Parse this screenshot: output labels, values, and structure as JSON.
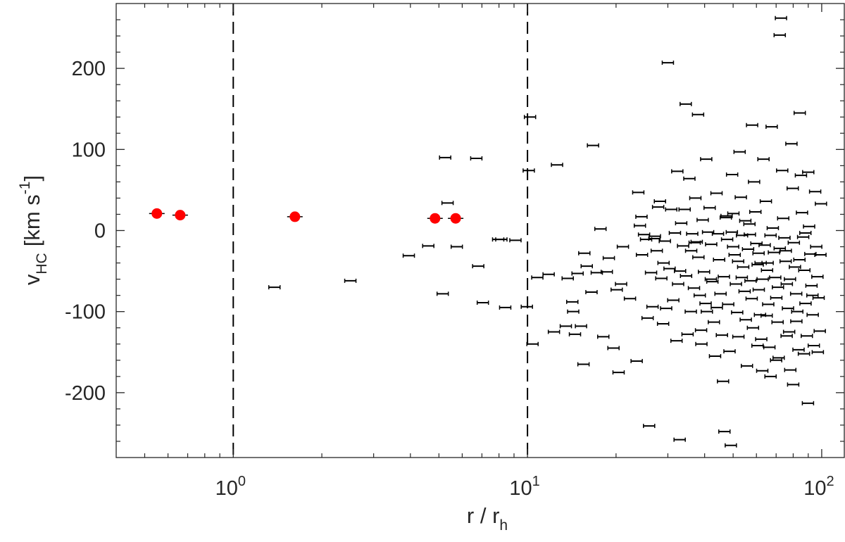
{
  "chart_data": {
    "type": "scatter",
    "title": "",
    "xlabel": "r / r",
    "xlabel_sub": "h",
    "ylabel": "v",
    "ylabel_sub": "HC",
    "ylabel_unit": "[km s",
    "ylabel_unit_sup": "-1",
    "ylabel_unit_close": "]",
    "xscale": "log",
    "xlim": [
      0.4,
      120
    ],
    "ylim": [
      -280,
      280
    ],
    "grid": false,
    "legend": "none",
    "colors": {
      "members": "#ff0000",
      "field": "#000000",
      "axis": "#262626",
      "reference_lines": "#000000"
    },
    "x_ticks": [
      {
        "value": 1,
        "base": "10",
        "exp": "0"
      },
      {
        "value": 10,
        "base": "10",
        "exp": "1"
      },
      {
        "value": 100,
        "base": "10",
        "exp": "2"
      }
    ],
    "y_ticks": [
      {
        "value": -200,
        "label": "-200"
      },
      {
        "value": -100,
        "label": "-100"
      },
      {
        "value": 0,
        "label": "0"
      },
      {
        "value": 100,
        "label": "100"
      },
      {
        "value": 200,
        "label": "200"
      }
    ],
    "reference_lines_x": [
      1,
      10
    ],
    "series": [
      {
        "marker": "filled-circle",
        "points": [
          [
            0.55,
            21
          ],
          [
            0.66,
            19
          ],
          [
            1.62,
            17
          ],
          [
            4.85,
            15
          ],
          [
            5.7,
            15
          ]
        ]
      },
      {
        "marker": "error-bar",
        "points": [
          [
            1.38,
            -70
          ],
          [
            2.5,
            -62
          ],
          [
            3.95,
            -31
          ],
          [
            4.6,
            -19
          ],
          [
            5.15,
            -78
          ],
          [
            5.25,
            90
          ],
          [
            5.35,
            34
          ],
          [
            5.75,
            -20
          ],
          [
            6.7,
            89
          ],
          [
            6.8,
            -44
          ],
          [
            7.05,
            -89
          ],
          [
            7.95,
            -11
          ],
          [
            8.15,
            -11
          ],
          [
            8.4,
            -95
          ],
          [
            9.1,
            -12
          ],
          [
            9.95,
            -94
          ],
          [
            10.1,
            74
          ],
          [
            10.2,
            140
          ],
          [
            10.4,
            -140
          ],
          [
            10.8,
            -58
          ],
          [
            11.8,
            -54
          ],
          [
            12.3,
            -125
          ],
          [
            12.6,
            81
          ],
          [
            13.5,
            -118
          ],
          [
            13.7,
            -59
          ],
          [
            14.2,
            -88
          ],
          [
            14.3,
            -100
          ],
          [
            14.5,
            -128
          ],
          [
            14.8,
            -53
          ],
          [
            15.2,
            -118
          ],
          [
            15.5,
            -165
          ],
          [
            15.6,
            -28
          ],
          [
            15.9,
            -44
          ],
          [
            16.5,
            -76
          ],
          [
            16.7,
            105
          ],
          [
            17.2,
            -52
          ],
          [
            17.7,
            2
          ],
          [
            18.1,
            -131
          ],
          [
            18.6,
            -51
          ],
          [
            18.9,
            -34
          ],
          [
            19.6,
            -145
          ],
          [
            20.1,
            -73
          ],
          [
            20.4,
            -175
          ],
          [
            20.8,
            -66
          ],
          [
            21.1,
            -20
          ],
          [
            22.3,
            -84
          ],
          [
            23.5,
            -161
          ],
          [
            23.8,
            47
          ],
          [
            24.1,
            6
          ],
          [
            24.4,
            17
          ],
          [
            24.9,
            -5
          ],
          [
            25.3,
            -11
          ],
          [
            25.6,
            -108
          ],
          [
            25.9,
            -241
          ],
          [
            26.3,
            -52
          ],
          [
            26.6,
            -94
          ],
          [
            27.1,
            -7
          ],
          [
            27.5,
            -25
          ],
          [
            27.8,
            29
          ],
          [
            28.2,
            36
          ],
          [
            28.5,
            -59
          ],
          [
            28.9,
            -115
          ],
          [
            29.3,
            -13
          ],
          [
            29.6,
            -96
          ],
          [
            30,
            207
          ],
          [
            30.4,
            -47
          ],
          [
            30.8,
            26
          ],
          [
            31.3,
            -86
          ],
          [
            31.7,
            -3
          ],
          [
            32.1,
            -136
          ],
          [
            32.5,
            -66
          ],
          [
            32.9,
            -258
          ],
          [
            33.3,
            9
          ],
          [
            33.8,
            -19
          ],
          [
            34.2,
            26
          ],
          [
            34.6,
            -56
          ],
          [
            35,
            -128
          ],
          [
            35.5,
            64
          ],
          [
            35.9,
            -100
          ],
          [
            36.3,
            -4
          ],
          [
            36.8,
            -71
          ],
          [
            37.2,
            40
          ],
          [
            37.6,
            -14
          ],
          [
            38.1,
            -33
          ],
          [
            38.5,
            -80
          ],
          [
            38.9,
            -123
          ],
          [
            39.4,
            13
          ],
          [
            39.8,
            -51
          ],
          [
            40.3,
            -90
          ],
          [
            40.7,
            -100
          ],
          [
            41.1,
            -2
          ],
          [
            41.6,
            28
          ],
          [
            42.1,
            -17
          ],
          [
            42.5,
            -63
          ],
          [
            43,
            -113
          ],
          [
            43.4,
            -155
          ],
          [
            43.9,
            46
          ],
          [
            44.4,
            -4
          ],
          [
            44.8,
            -36
          ],
          [
            45.3,
            -78
          ],
          [
            45.8,
            -129
          ],
          [
            46.2,
            -186
          ],
          [
            46.7,
            -248
          ],
          [
            47.2,
            16
          ],
          [
            47.7,
            -11
          ],
          [
            48.1,
            -91
          ],
          [
            48.6,
            -149
          ],
          [
            49.1,
            -265
          ],
          [
            49.6,
            69
          ],
          [
            50.1,
            21
          ],
          [
            50.6,
            -30
          ],
          [
            51.1,
            -66
          ],
          [
            51.6,
            -101
          ],
          [
            52.1,
            -131
          ],
          [
            52.6,
            97
          ],
          [
            53.1,
            41
          ],
          [
            53.6,
            -6
          ],
          [
            54.1,
            -45
          ],
          [
            54.7,
            -75
          ],
          [
            55.2,
            -110
          ],
          [
            55.7,
            -167
          ],
          [
            56.2,
            -23
          ],
          [
            56.8,
            8
          ],
          [
            57.3,
            -62
          ],
          [
            57.8,
            -84
          ],
          [
            58.4,
            -120
          ],
          [
            58.9,
            60
          ],
          [
            59.5,
            23
          ],
          [
            60,
            -16
          ],
          [
            60.6,
            -42
          ],
          [
            61.1,
            -73
          ],
          [
            61.7,
            -104
          ],
          [
            62.3,
            -134
          ],
          [
            62.8,
            -173
          ],
          [
            63.4,
            88
          ],
          [
            64,
            -18
          ],
          [
            64.6,
            36
          ],
          [
            65.2,
            -49
          ],
          [
            65.8,
            -91
          ],
          [
            66.4,
            -144
          ],
          [
            67,
            -180
          ],
          [
            67.6,
            128
          ],
          [
            68.2,
            3
          ],
          [
            68.8,
            -27
          ],
          [
            69.5,
            -58
          ],
          [
            70.1,
            -83
          ],
          [
            70.8,
            -113
          ],
          [
            71.4,
            -157
          ],
          [
            72,
            241
          ],
          [
            72.7,
            262
          ],
          [
            73.4,
            74
          ],
          [
            74,
            15
          ],
          [
            74.7,
            -9
          ],
          [
            75.4,
            -38
          ],
          [
            76.1,
            -66
          ],
          [
            76.8,
            -96
          ],
          [
            77.5,
            -125
          ],
          [
            78.2,
            -172
          ],
          [
            78.9,
            107
          ],
          [
            79.7,
            52
          ],
          [
            80.4,
            -15
          ],
          [
            81.1,
            -45
          ],
          [
            81.9,
            -78
          ],
          [
            82.6,
            -100
          ],
          [
            83.4,
            -147
          ],
          [
            84.2,
            145
          ],
          [
            85,
            68
          ],
          [
            85.7,
            22
          ],
          [
            86.5,
            -8
          ],
          [
            87.3,
            -49
          ],
          [
            88.1,
            -90
          ],
          [
            89,
            -130
          ],
          [
            89.8,
            -213
          ],
          [
            90.6,
            5
          ],
          [
            91.5,
            -29
          ],
          [
            92.3,
            -68
          ],
          [
            93.2,
            -104
          ],
          [
            94,
            -142
          ],
          [
            95,
            48
          ],
          [
            95.8,
            -20
          ],
          [
            96.7,
            -57
          ],
          [
            97.6,
            -83
          ],
          [
            98.5,
            -124
          ],
          [
            99.4,
            33
          ],
          [
            75.5,
            -25
          ],
          [
            46.5,
            -57
          ],
          [
            58,
            130
          ],
          [
            32.3,
            73
          ],
          [
            60.5,
            -142
          ],
          [
            39,
            -140
          ],
          [
            87,
            -152
          ],
          [
            49.5,
            -2
          ],
          [
            27,
            -10
          ],
          [
            65,
            -105
          ],
          [
            55,
            12
          ],
          [
            80,
            -190
          ],
          [
            44,
            -95
          ],
          [
            37,
            -15
          ],
          [
            70,
            -160
          ],
          [
            90,
            72
          ],
          [
            52,
            -38
          ],
          [
            34.5,
            156
          ],
          [
            38,
            143
          ],
          [
            40.5,
            88
          ],
          [
            47.5,
            18
          ],
          [
            57,
            -5
          ],
          [
            61,
            -28
          ],
          [
            63,
            -60
          ],
          [
            67,
            -6
          ],
          [
            72,
            -22
          ],
          [
            78,
            -60
          ],
          [
            84,
            -36
          ],
          [
            88,
            -3
          ],
          [
            93,
            -80
          ],
          [
            97,
            -150
          ],
          [
            29,
            -40
          ],
          [
            33,
            -50
          ],
          [
            42,
            -60
          ],
          [
            53.5,
            -58
          ],
          [
            65.5,
            -40
          ],
          [
            76,
            -130
          ],
          [
            82,
            -112
          ],
          [
            99,
            -30
          ],
          [
            24.5,
            -30
          ],
          [
            36,
            -25
          ],
          [
            50,
            -20
          ],
          [
            62,
            -40
          ],
          [
            71,
            -70
          ]
        ]
      }
    ]
  }
}
